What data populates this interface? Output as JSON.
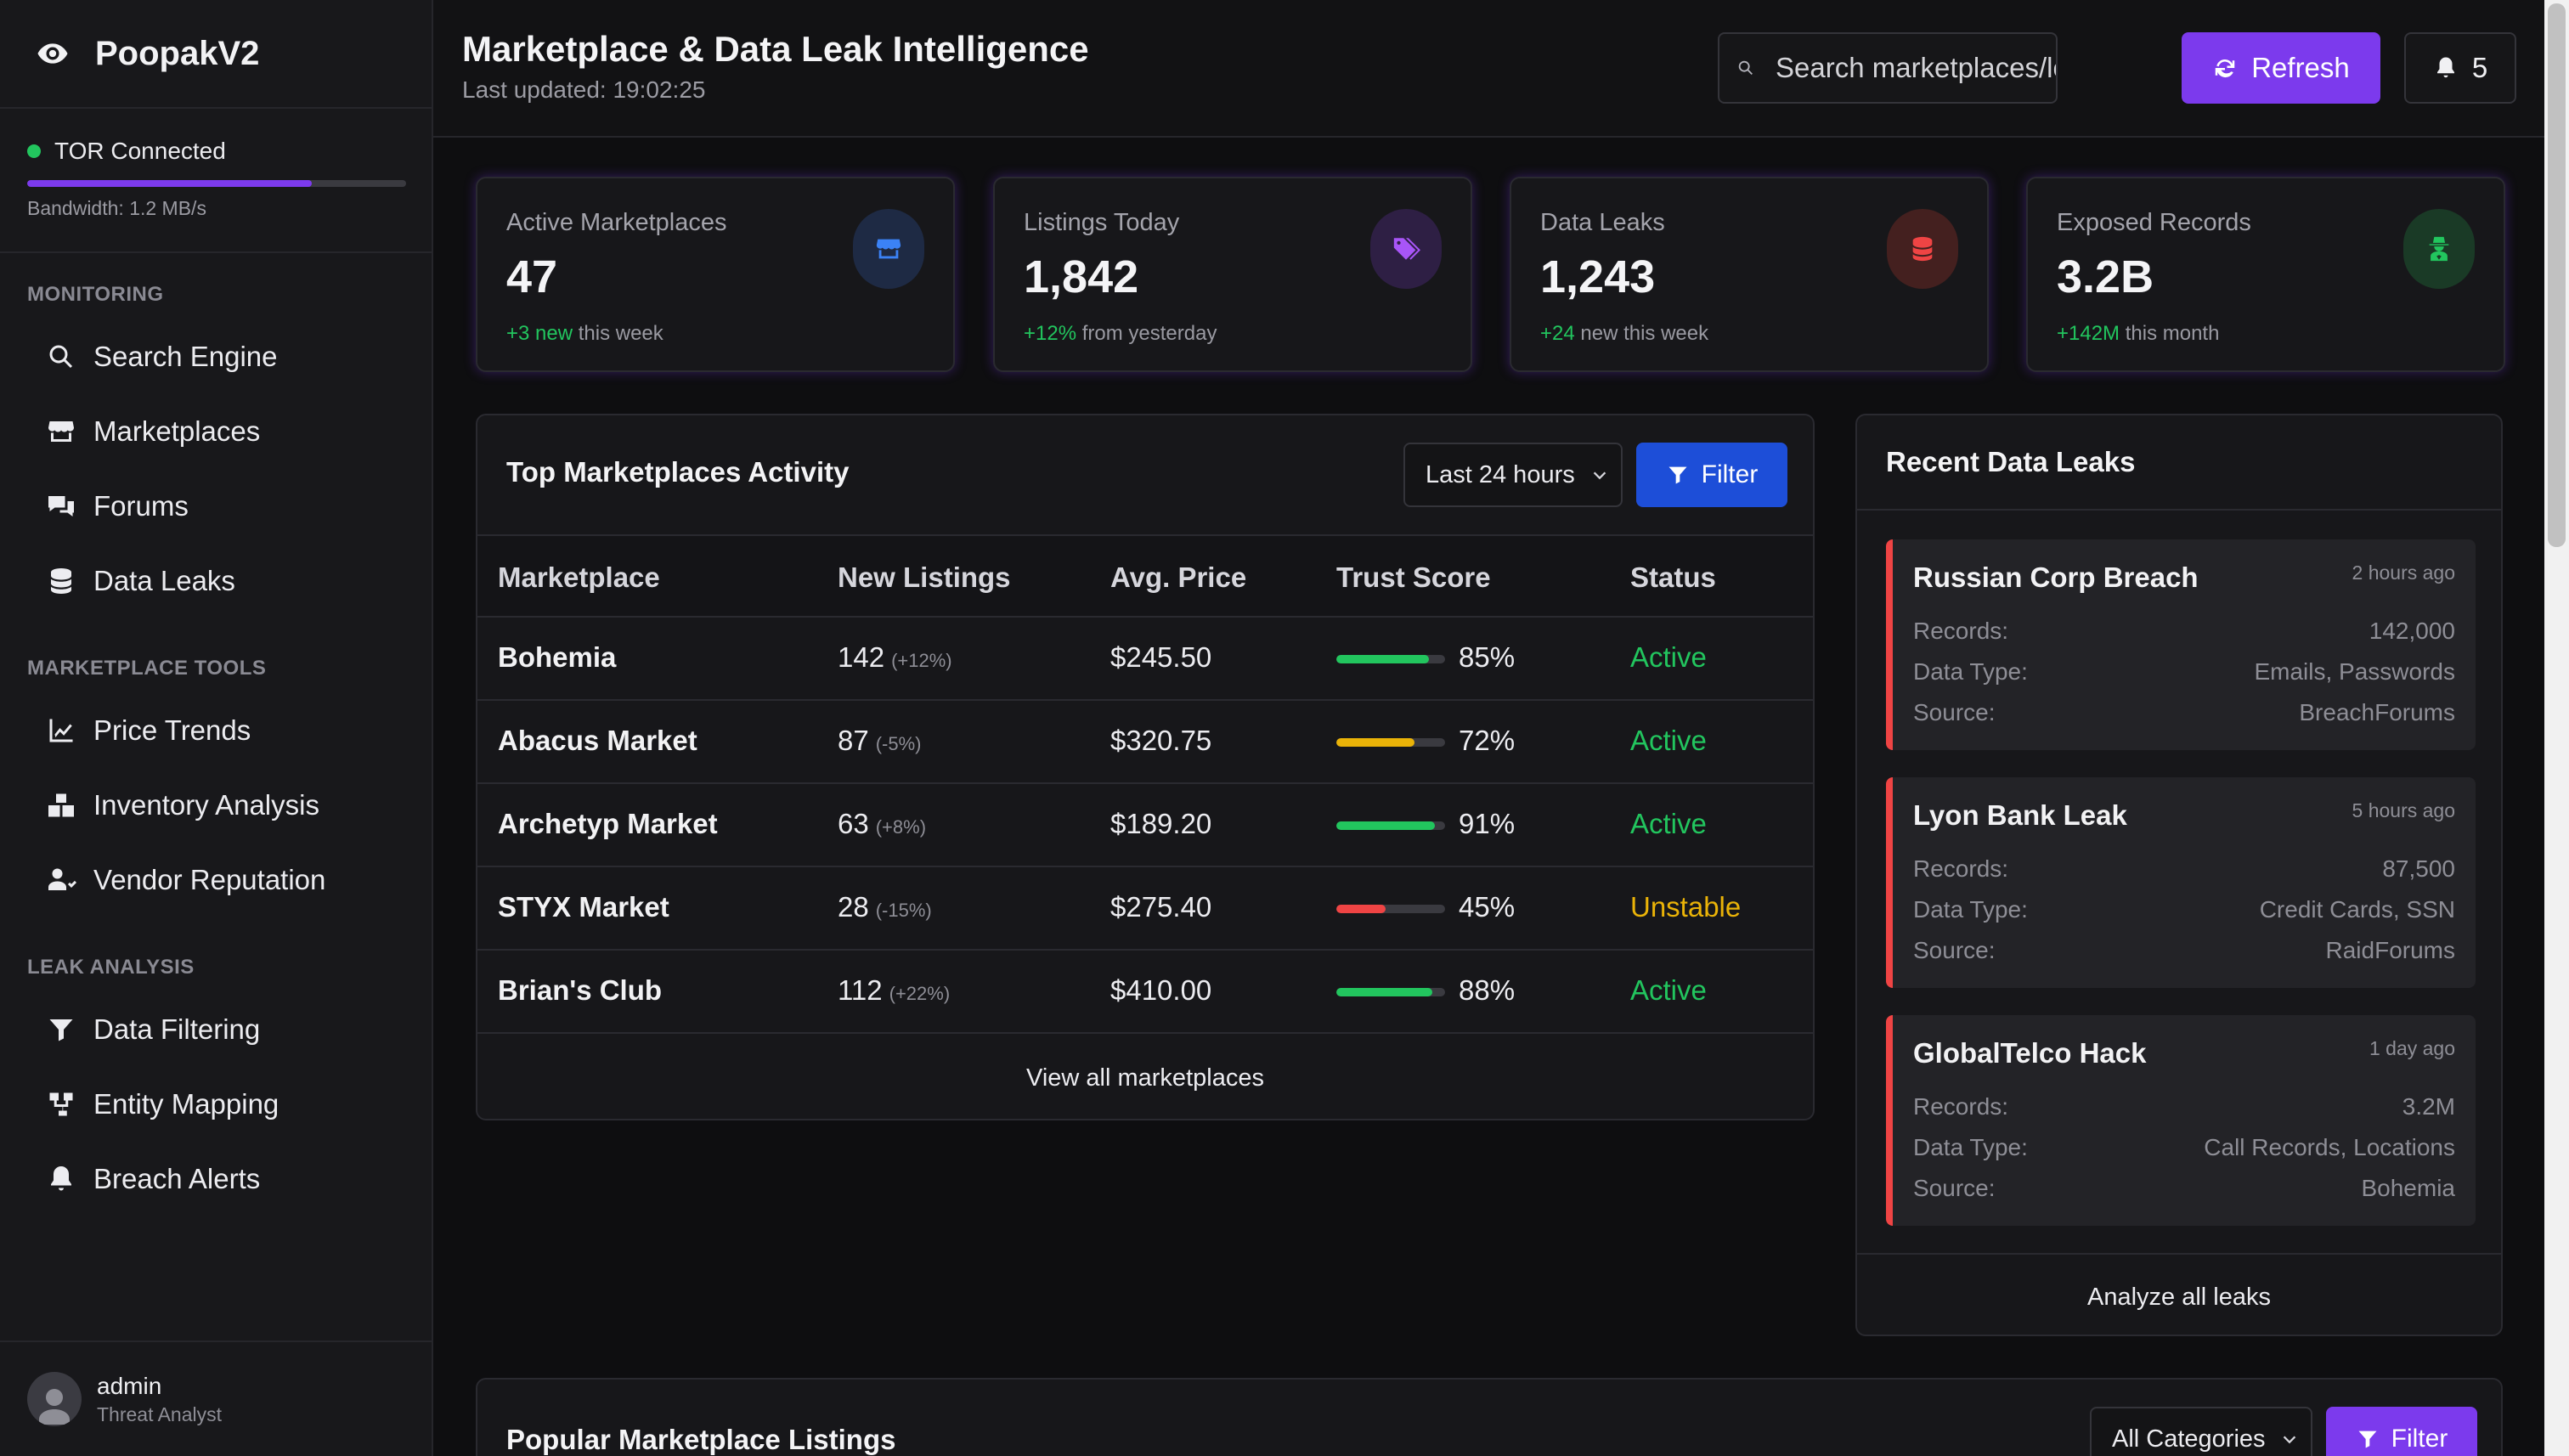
{
  "brand": {
    "name": "PoopakV2"
  },
  "tor": {
    "status": "TOR Connected",
    "bandwidth": "Bandwidth: 1.2 MB/s",
    "bandwidth_level": 0.75
  },
  "nav": {
    "monitoring_title": "MONITORING",
    "monitoring": [
      "Search Engine",
      "Marketplaces",
      "Forums",
      "Data Leaks"
    ],
    "tools_title": "MARKETPLACE TOOLS",
    "tools": [
      "Price Trends",
      "Inventory Analysis",
      "Vendor Reputation"
    ],
    "leak_title": "LEAK ANALYSIS",
    "leak": [
      "Data Filtering",
      "Entity Mapping",
      "Breach Alerts"
    ]
  },
  "user": {
    "name": "admin",
    "role": "Threat Analyst"
  },
  "header": {
    "title": "Marketplace & Data Leak Intelligence",
    "subtitle": "Last updated: 19:02:25",
    "search_placeholder": "Search marketplaces/leaks...",
    "refresh_label": "Refresh",
    "notification_count": "5"
  },
  "stats": [
    {
      "label": "Active Marketplaces",
      "value": "47",
      "delta": "+3 new",
      "note": " this week",
      "icon": "store-icon",
      "icon_color": "#3b82f6",
      "icon_bg": "#1e2a44"
    },
    {
      "label": "Listings Today",
      "value": "1,842",
      "delta": "+12%",
      "note": " from yesterday",
      "icon": "tags-icon",
      "icon_color": "#a855f7",
      "icon_bg": "#2e1f44"
    },
    {
      "label": "Data Leaks",
      "value": "1,243",
      "delta": "+24",
      "note": " new this week",
      "icon": "database-icon",
      "icon_color": "#ef4444",
      "icon_bg": "#44201f"
    },
    {
      "label": "Exposed Records",
      "value": "3.2B",
      "delta": "+142M",
      "note": " this month",
      "icon": "user-secret-icon",
      "icon_color": "#22c55e",
      "icon_bg": "#1a3a26"
    }
  ],
  "activity": {
    "title": "Top Marketplaces Activity",
    "range": "Last 24 hours",
    "filter_label": "Filter",
    "columns": [
      "Marketplace",
      "New Listings",
      "Avg. Price",
      "Trust Score",
      "Status"
    ],
    "rows": [
      {
        "name": "Bohemia",
        "listings": "142",
        "change": "(+12%)",
        "price": "$245.50",
        "trust": "85%",
        "trust_value": 0.85,
        "trust_color": "#22c55e",
        "status": "Active",
        "status_color": "#22c55e"
      },
      {
        "name": "Abacus Market",
        "listings": "87",
        "change": "(-5%)",
        "price": "$320.75",
        "trust": "72%",
        "trust_value": 0.72,
        "trust_color": "#eab308",
        "status": "Active",
        "status_color": "#22c55e"
      },
      {
        "name": "Archetyp Market",
        "listings": "63",
        "change": "(+8%)",
        "price": "$189.20",
        "trust": "91%",
        "trust_value": 0.91,
        "trust_color": "#22c55e",
        "status": "Active",
        "status_color": "#22c55e"
      },
      {
        "name": "STYX Market",
        "listings": "28",
        "change": "(-15%)",
        "price": "$275.40",
        "trust": "45%",
        "trust_value": 0.45,
        "trust_color": "#ef4444",
        "status": "Unstable",
        "status_color": "#eab308"
      },
      {
        "name": "Brian's Club",
        "listings": "112",
        "change": "(+22%)",
        "price": "$410.00",
        "trust": "88%",
        "trust_value": 0.88,
        "trust_color": "#22c55e",
        "status": "Active",
        "status_color": "#22c55e"
      }
    ],
    "view_all": "View all marketplaces"
  },
  "leaks": {
    "title": "Recent Data Leaks",
    "labels": {
      "records": "Records:",
      "type": "Data Type:",
      "source": "Source:"
    },
    "items": [
      {
        "title": "Russian Corp Breach",
        "time": "2 hours ago",
        "records": "142,000",
        "type": "Emails, Passwords",
        "source": "BreachForums"
      },
      {
        "title": "Lyon Bank Leak",
        "time": "5 hours ago",
        "records": "87,500",
        "type": "Credit Cards, SSN",
        "source": "RaidForums"
      },
      {
        "title": "GlobalTelco Hack",
        "time": "1 day ago",
        "records": "3.2M",
        "type": "Call Records, Locations",
        "source": "Bohemia"
      }
    ],
    "analyze_all": "Analyze all leaks"
  },
  "listings": {
    "title": "Popular Marketplace Listings",
    "category": "All Categories",
    "filter_label": "Filter"
  },
  "colors": {
    "accent": "#7c3aed",
    "filter_blue": "#1d4ed8",
    "danger": "#ef4444",
    "success": "#22c55e",
    "warning": "#eab308"
  }
}
